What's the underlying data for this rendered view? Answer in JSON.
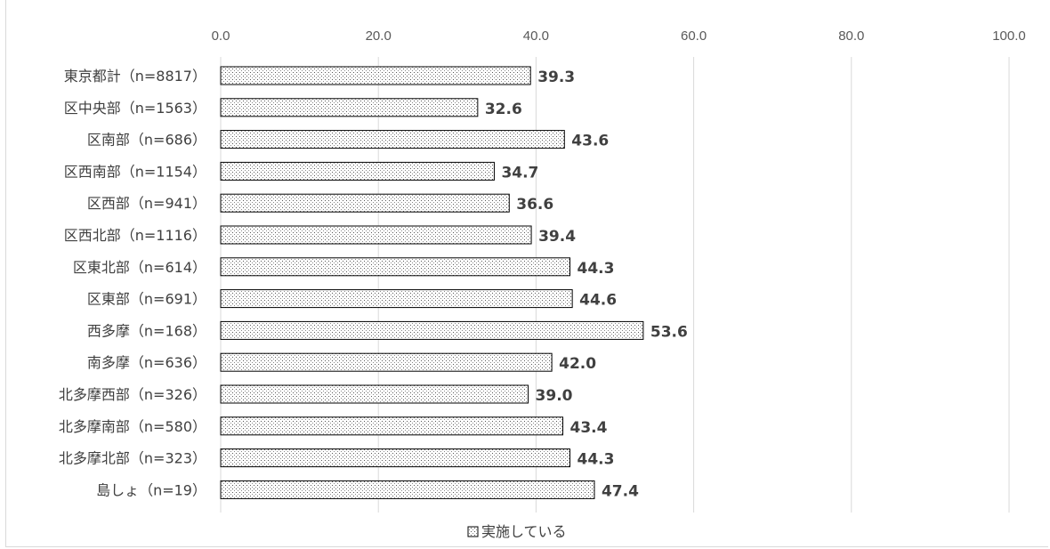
{
  "chart_data": {
    "type": "bar",
    "orientation": "horizontal",
    "categories": [
      "東京都計（n=8817）",
      "区中央部（n=1563）",
      "区南部（n=686）",
      "区西南部（n=1154）",
      "区西部（n=941）",
      "区西北部（n=1116）",
      "区東北部（n=614）",
      "区東部（n=691）",
      "西多摩（n=168）",
      "南多摩（n=636）",
      "北多摩西部（n=326）",
      "北多摩南部（n=580）",
      "北多摩北部（n=323）",
      "島しょ（n=19）"
    ],
    "series": [
      {
        "name": "実施している",
        "values": [
          39.3,
          32.6,
          43.6,
          34.7,
          36.6,
          39.4,
          44.3,
          44.6,
          53.6,
          42.0,
          39.0,
          43.4,
          44.3,
          47.4
        ],
        "labels": [
          "39.3",
          "32.6",
          "43.6",
          "34.7",
          "36.6",
          "39.4",
          "44.3",
          "44.6",
          "53.6",
          "42.0",
          "39.0",
          "43.4",
          "44.3",
          "47.4"
        ]
      }
    ],
    "xlim": [
      0,
      100
    ],
    "x_ticks": [
      "0.0",
      "20.0",
      "40.0",
      "60.0",
      "80.0",
      "100.0"
    ],
    "grid": true,
    "legend_position": "bottom",
    "bar_fill": "dotted pattern",
    "colors": {
      "grid": "#d9d9d9",
      "text": "#404040",
      "bar_border": "#000000"
    }
  }
}
